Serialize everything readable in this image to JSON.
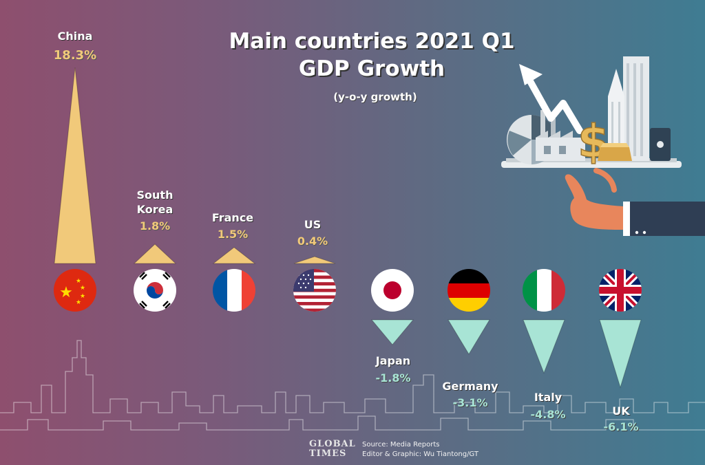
{
  "chart_data": {
    "type": "bar",
    "title_lines": [
      "Main countries 2021 Q1",
      "GDP Growth"
    ],
    "subtitle": "(y-o-y growth)",
    "categories": [
      "China",
      "South Korea",
      "France",
      "US",
      "Japan",
      "Germany",
      "Italy",
      "UK"
    ],
    "value_labels": [
      "18.3%",
      "1.8%",
      "1.5%",
      "0.4%",
      "-1.8%",
      "-3.1%",
      "-4.8%",
      "-6.1%"
    ],
    "values": [
      18.3,
      1.8,
      1.5,
      0.4,
      -1.8,
      -3.1,
      -4.8,
      -6.1
    ],
    "unit": "%"
  },
  "category_display": [
    "China",
    "South\nKorea",
    "France",
    "US",
    "Japan",
    "Germany",
    "Italy",
    "UK"
  ],
  "footer": {
    "source": "Source: Media Reports",
    "editor": "Editor & Graphic: Wu Tiantong/GT"
  },
  "logo": {
    "line1": "GLOBAL",
    "line2": "TIMES"
  },
  "colors": {
    "positive": "#f1c97a",
    "negative": "#a8e4d5",
    "background_left": "#8e4f6e",
    "background_right": "#3f7c92"
  },
  "flags": [
    "china-flag-icon",
    "south-korea-flag-icon",
    "france-flag-icon",
    "us-flag-icon",
    "japan-flag-icon",
    "germany-flag-icon",
    "italy-flag-icon",
    "uk-flag-icon"
  ],
  "illustration": [
    "hand-icon",
    "serving-tray-icon",
    "skyscraper-icon",
    "factory-icon",
    "dollar-sign-icon",
    "gold-bar-icon",
    "upward-arrow-icon",
    "pie-chart-icon",
    "oil-barrel-icon"
  ]
}
